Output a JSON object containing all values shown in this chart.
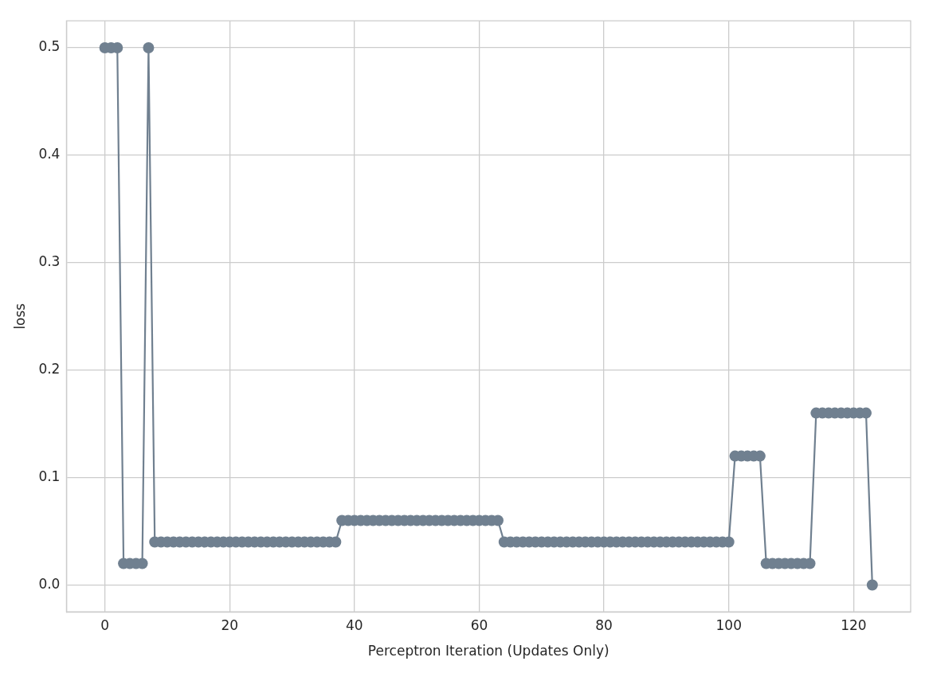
{
  "chart_data": {
    "type": "line",
    "xlabel": "Perceptron Iteration (Updates Only)",
    "ylabel": "loss",
    "x": [
      0,
      1,
      2,
      3,
      4,
      5,
      6,
      7,
      8,
      9,
      10,
      11,
      12,
      13,
      14,
      15,
      16,
      17,
      18,
      19,
      20,
      21,
      22,
      23,
      24,
      25,
      26,
      27,
      28,
      29,
      30,
      31,
      32,
      33,
      34,
      35,
      36,
      37,
      38,
      39,
      40,
      41,
      42,
      43,
      44,
      45,
      46,
      47,
      48,
      49,
      50,
      51,
      52,
      53,
      54,
      55,
      56,
      57,
      58,
      59,
      60,
      61,
      62,
      63,
      64,
      65,
      66,
      67,
      68,
      69,
      70,
      71,
      72,
      73,
      74,
      75,
      76,
      77,
      78,
      79,
      80,
      81,
      82,
      83,
      84,
      85,
      86,
      87,
      88,
      89,
      90,
      91,
      92,
      93,
      94,
      95,
      96,
      97,
      98,
      99,
      100,
      101,
      102,
      103,
      104,
      105,
      106,
      107,
      108,
      109,
      110,
      111,
      112,
      113,
      114,
      115,
      116,
      117,
      118,
      119,
      120,
      121,
      122,
      123
    ],
    "series": [
      {
        "color": "#708090",
        "values": [
          0.5,
          0.5,
          0.5,
          0.02,
          0.02,
          0.02,
          0.02,
          0.5,
          0.04,
          0.04,
          0.04,
          0.04,
          0.04,
          0.04,
          0.04,
          0.04,
          0.04,
          0.04,
          0.04,
          0.04,
          0.04,
          0.04,
          0.04,
          0.04,
          0.04,
          0.04,
          0.04,
          0.04,
          0.04,
          0.04,
          0.04,
          0.04,
          0.04,
          0.04,
          0.04,
          0.04,
          0.04,
          0.04,
          0.06,
          0.06,
          0.06,
          0.06,
          0.06,
          0.06,
          0.06,
          0.06,
          0.06,
          0.06,
          0.06,
          0.06,
          0.06,
          0.06,
          0.06,
          0.06,
          0.06,
          0.06,
          0.06,
          0.06,
          0.06,
          0.06,
          0.06,
          0.06,
          0.06,
          0.06,
          0.04,
          0.04,
          0.04,
          0.04,
          0.04,
          0.04,
          0.04,
          0.04,
          0.04,
          0.04,
          0.04,
          0.04,
          0.04,
          0.04,
          0.04,
          0.04,
          0.04,
          0.04,
          0.04,
          0.04,
          0.04,
          0.04,
          0.04,
          0.04,
          0.04,
          0.04,
          0.04,
          0.04,
          0.04,
          0.04,
          0.04,
          0.04,
          0.04,
          0.04,
          0.04,
          0.04,
          0.04,
          0.12,
          0.12,
          0.12,
          0.12,
          0.12,
          0.02,
          0.02,
          0.02,
          0.02,
          0.02,
          0.02,
          0.02,
          0.02,
          0.16,
          0.16,
          0.16,
          0.16,
          0.16,
          0.16,
          0.16,
          0.16,
          0.16,
          0
        ]
      }
    ],
    "xlim": [
      -6.15,
      129.15
    ],
    "xticks": [
      0,
      20,
      40,
      60,
      80,
      100,
      120
    ],
    "ylim": [
      -0.025,
      0.525
    ],
    "yticks": [
      {
        "value": 0,
        "label": "0.0"
      },
      0.1,
      0.2,
      0.3,
      0.4,
      0.5
    ],
    "grid": true,
    "legend": false,
    "marker": "circle",
    "line_style": "solid"
  }
}
